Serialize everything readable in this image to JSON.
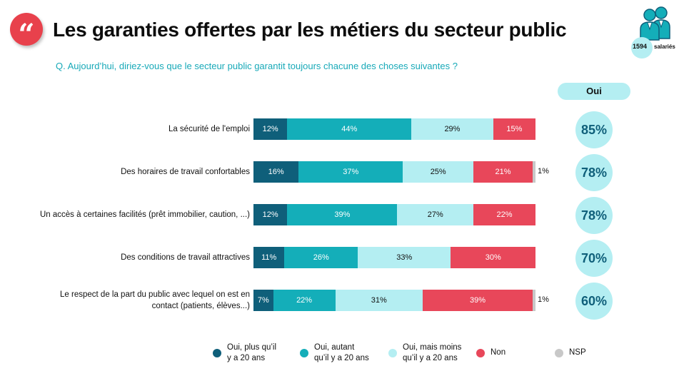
{
  "header": {
    "quote_glyph": "“",
    "title": "Les garanties offertes par les métiers du secteur public",
    "question": "Q. Aujourd’hui, diriez-vous que le secteur public garantit toujours chacune des choses suivantes ?",
    "sample_count": "1594",
    "sample_label": "salariés",
    "sample_icon": "people-icon"
  },
  "oui_header": "Oui",
  "colors": {
    "dark": "#0f5f7a",
    "teal": "#14aeb9",
    "light": "#b4eef2",
    "red": "#e8475a",
    "nsp": "#c8c8c8",
    "accent": "#e8414c"
  },
  "chart_data": {
    "type": "bar",
    "orientation": "horizontal",
    "stacked": true,
    "xlim": [
      0,
      100
    ],
    "grid": false,
    "legend_placement": "bottom",
    "categories": [
      "La sécurité de l'emploi",
      "Des horaires de travail confortables",
      "Un accès à certaines facilités (prêt immobilier, caution, ...)",
      "Des conditions de travail attractives",
      "Le respect de la part du public avec lequel on est en contact (patients, élèves...)"
    ],
    "series": [
      {
        "name": "Oui, plus qu’il\ny a 20 ans",
        "key": "dark",
        "values": [
          12,
          16,
          12,
          11,
          7
        ],
        "labels": [
          "12%",
          "16%",
          "12%",
          "11%",
          "7%"
        ]
      },
      {
        "name": "Oui, autant\nqu’il y a 20 ans",
        "key": "teal",
        "values": [
          44,
          37,
          39,
          26,
          22
        ],
        "labels": [
          "44%",
          "37%",
          "39%",
          "26%",
          "22%"
        ]
      },
      {
        "name": "Oui, mais moins\nqu’il y a 20 ans",
        "key": "light",
        "values": [
          29,
          25,
          27,
          33,
          31
        ],
        "labels": [
          "29%",
          "25%",
          "27%",
          "33%",
          "31%"
        ]
      },
      {
        "name": "Non",
        "key": "red",
        "values": [
          15,
          21,
          22,
          30,
          39
        ],
        "labels": [
          "15%",
          "21%",
          "22%",
          "30%",
          "39%"
        ]
      },
      {
        "name": "NSP",
        "key": "nsp",
        "values": [
          0,
          1,
          0,
          0,
          1
        ],
        "labels": [
          "",
          "1%",
          "",
          "",
          "1%"
        ]
      }
    ],
    "totals_oui": [
      "85%",
      "78%",
      "78%",
      "70%",
      "60%"
    ]
  }
}
